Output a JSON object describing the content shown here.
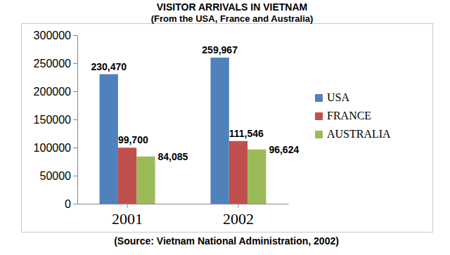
{
  "chart_data": {
    "type": "bar",
    "title": "VISITOR ARRIVALS IN VIETNAM",
    "subtitle": "(From the USA, France and Australia)",
    "source": "(Source: Vietnam National Administration, 2002)",
    "categories": [
      "2001",
      "2002"
    ],
    "series": [
      {
        "name": "USA",
        "color": "#4f81bd",
        "values": [
          230470,
          259967
        ],
        "value_labels": [
          "230,470",
          "259,967"
        ]
      },
      {
        "name": "FRANCE",
        "color": "#c0504d",
        "values": [
          99700,
          111546
        ],
        "value_labels": [
          "99,700",
          "111,546"
        ]
      },
      {
        "name": "AUSTRALIA",
        "color": "#9bbb59",
        "values": [
          84085,
          96624
        ],
        "value_labels": [
          "84,085",
          "96,624"
        ]
      }
    ],
    "ylim": [
      0,
      300000
    ],
    "yticks": [
      0,
      50000,
      100000,
      150000,
      200000,
      250000,
      300000
    ],
    "grid": false,
    "legend": "right",
    "data_labels": true
  }
}
